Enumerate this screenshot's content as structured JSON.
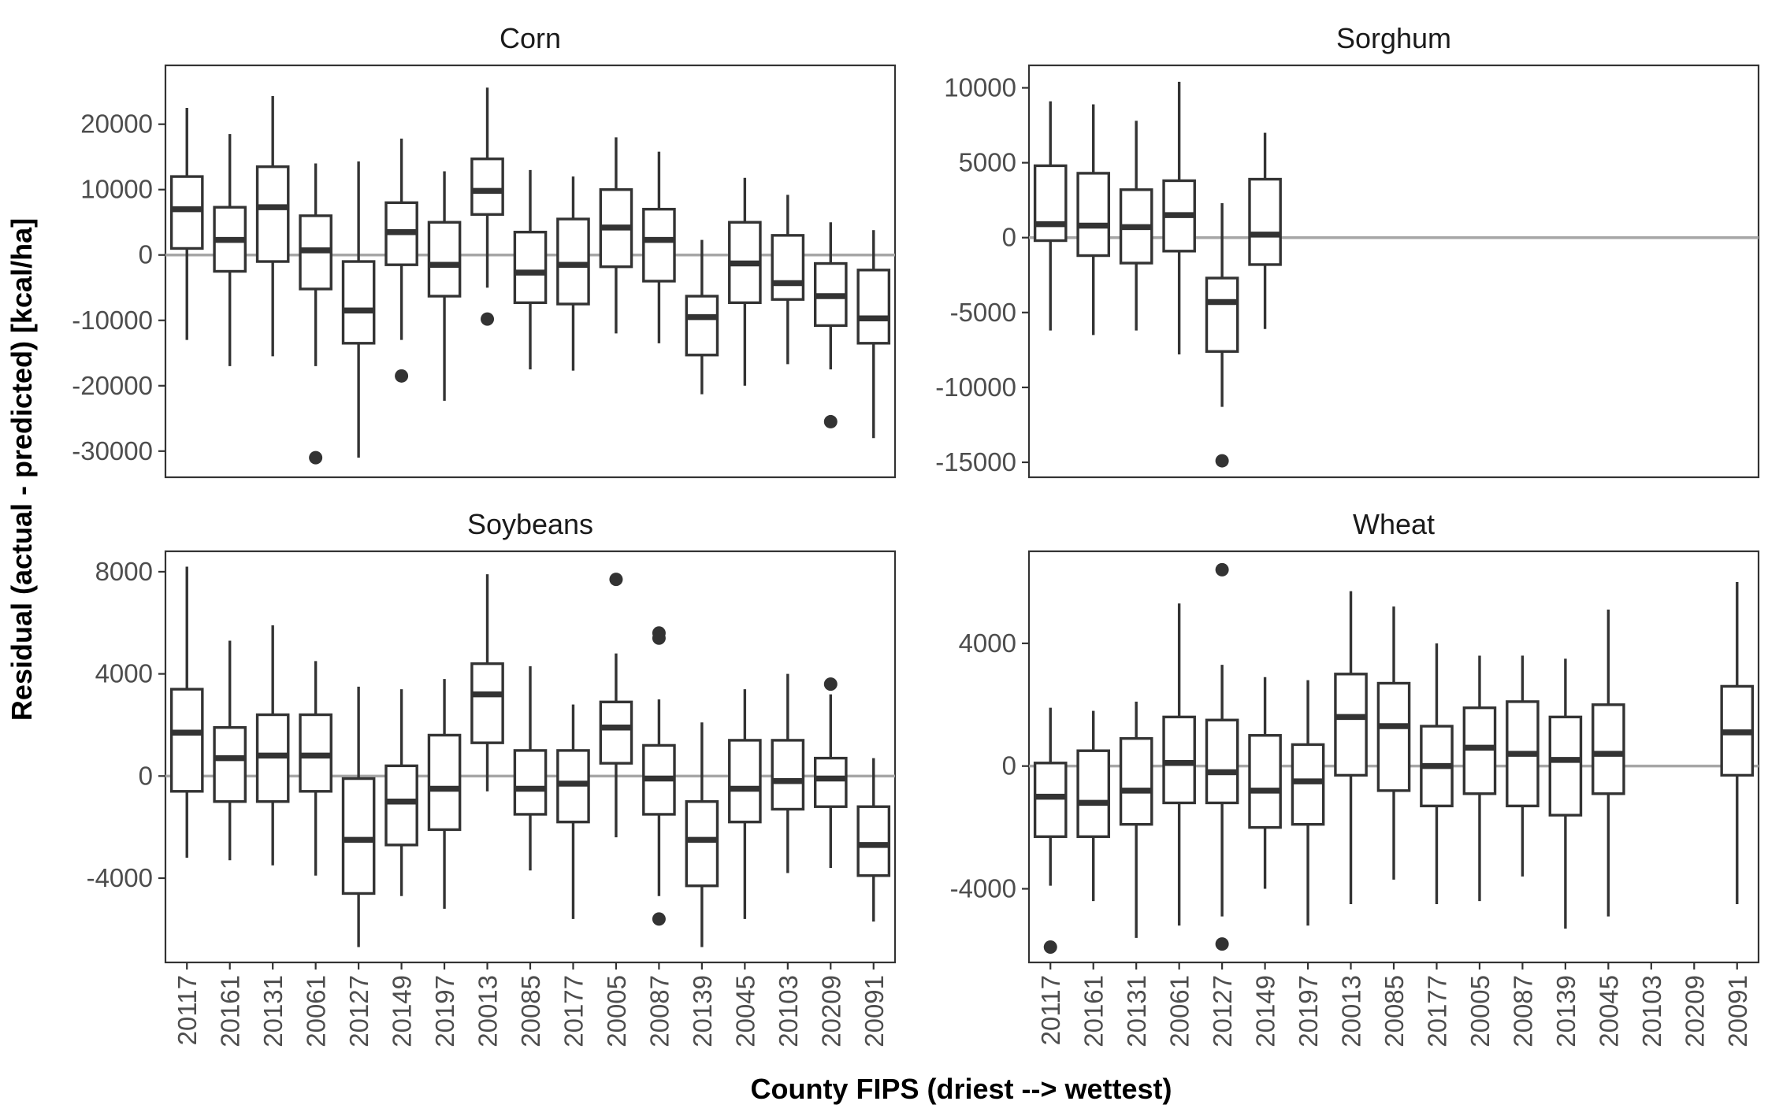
{
  "chart_data": {
    "type": "box",
    "xlabel": "County FIPS (driest --> wettest)",
    "ylabel": "Residual (actual - predicted) [kcal/ha]",
    "categories": [
      "20117",
      "20161",
      "20131",
      "20061",
      "20127",
      "20149",
      "20197",
      "20013",
      "20085",
      "20177",
      "20005",
      "20087",
      "20139",
      "20045",
      "20103",
      "20209",
      "20091"
    ],
    "panels": [
      {
        "title": "Corn",
        "ylim": [
          -34000,
          29000
        ],
        "yticks": [
          20000,
          10000,
          0,
          -10000,
          -20000,
          -30000
        ],
        "ytick_labels": [
          "20000",
          "10000",
          "0",
          "-10000",
          "-20000",
          "-30000"
        ],
        "boxes": [
          {
            "category": "20117",
            "min": -13000,
            "q1": 1000,
            "median": 7000,
            "q3": 12000,
            "max": 22500,
            "outliers": []
          },
          {
            "category": "20161",
            "min": -17000,
            "q1": -2500,
            "median": 2300,
            "q3": 7300,
            "max": 18500,
            "outliers": []
          },
          {
            "category": "20131",
            "min": -15500,
            "q1": -1000,
            "median": 7300,
            "q3": 13500,
            "max": 24300,
            "outliers": []
          },
          {
            "category": "20061",
            "min": -17000,
            "q1": -5200,
            "median": 700,
            "q3": 6000,
            "max": 14000,
            "outliers": [
              -31000
            ]
          },
          {
            "category": "20127",
            "min": -31000,
            "q1": -13500,
            "median": -8500,
            "q3": -1000,
            "max": 14300,
            "outliers": []
          },
          {
            "category": "20149",
            "min": -13000,
            "q1": -1500,
            "median": 3500,
            "q3": 8000,
            "max": 17800,
            "outliers": [
              -18500
            ]
          },
          {
            "category": "20197",
            "min": -22300,
            "q1": -6300,
            "median": -1500,
            "q3": 5000,
            "max": 12800,
            "outliers": []
          },
          {
            "category": "20013",
            "min": -5000,
            "q1": 6200,
            "median": 9800,
            "q3": 14700,
            "max": 25600,
            "outliers": [
              -9800
            ]
          },
          {
            "category": "20085",
            "min": -17500,
            "q1": -7300,
            "median": -2700,
            "q3": 3500,
            "max": 13000,
            "outliers": []
          },
          {
            "category": "20177",
            "min": -17700,
            "q1": -7500,
            "median": -1500,
            "q3": 5500,
            "max": 12000,
            "outliers": []
          },
          {
            "category": "20005",
            "min": -12000,
            "q1": -1800,
            "median": 4200,
            "q3": 10000,
            "max": 18000,
            "outliers": []
          },
          {
            "category": "20087",
            "min": -13500,
            "q1": -4000,
            "median": 2300,
            "q3": 7000,
            "max": 15800,
            "outliers": []
          },
          {
            "category": "20139",
            "min": -21300,
            "q1": -15300,
            "median": -9500,
            "q3": -6300,
            "max": 2300,
            "outliers": []
          },
          {
            "category": "20045",
            "min": -20000,
            "q1": -7300,
            "median": -1300,
            "q3": 5000,
            "max": 11800,
            "outliers": []
          },
          {
            "category": "20103",
            "min": -16700,
            "q1": -6800,
            "median": -4300,
            "q3": 3000,
            "max": 9200,
            "outliers": []
          },
          {
            "category": "20209",
            "min": -17500,
            "q1": -10800,
            "median": -6300,
            "q3": -1300,
            "max": 5000,
            "outliers": [
              -25500
            ]
          },
          {
            "category": "20091",
            "min": -28000,
            "q1": -13500,
            "median": -9700,
            "q3": -2300,
            "max": 3800,
            "outliers": []
          }
        ]
      },
      {
        "title": "Sorghum",
        "ylim": [
          -16000,
          11500
        ],
        "yticks": [
          10000,
          5000,
          0,
          -5000,
          -10000,
          -15000
        ],
        "ytick_labels": [
          "10000",
          "5000",
          "0",
          "-5000",
          "-10000",
          "-15000"
        ],
        "boxes": [
          {
            "category": "20117",
            "min": -6200,
            "q1": -200,
            "median": 900,
            "q3": 4800,
            "max": 9100,
            "outliers": []
          },
          {
            "category": "20161",
            "min": -6500,
            "q1": -1200,
            "median": 800,
            "q3": 4300,
            "max": 8900,
            "outliers": []
          },
          {
            "category": "20131",
            "min": -6200,
            "q1": -1700,
            "median": 700,
            "q3": 3200,
            "max": 7800,
            "outliers": []
          },
          {
            "category": "20061",
            "min": -7800,
            "q1": -900,
            "median": 1500,
            "q3": 3800,
            "max": 10400,
            "outliers": []
          },
          {
            "category": "20127",
            "min": -11300,
            "q1": -7600,
            "median": -4300,
            "q3": -2700,
            "max": 2300,
            "outliers": [
              -14900
            ]
          },
          {
            "category": "20149",
            "min": -6100,
            "q1": -1800,
            "median": 200,
            "q3": 3900,
            "max": 7000,
            "outliers": []
          }
        ]
      },
      {
        "title": "Soybeans",
        "ylim": [
          -7300,
          8800
        ],
        "yticks": [
          8000,
          4000,
          0,
          -4000
        ],
        "ytick_labels": [
          "8000",
          "4000",
          "0",
          "-4000"
        ],
        "boxes": [
          {
            "category": "20117",
            "min": -3200,
            "q1": -600,
            "median": 1700,
            "q3": 3400,
            "max": 8200,
            "outliers": []
          },
          {
            "category": "20161",
            "min": -3300,
            "q1": -1000,
            "median": 700,
            "q3": 1900,
            "max": 5300,
            "outliers": []
          },
          {
            "category": "20131",
            "min": -3500,
            "q1": -1000,
            "median": 800,
            "q3": 2400,
            "max": 5900,
            "outliers": []
          },
          {
            "category": "20061",
            "min": -3900,
            "q1": -600,
            "median": 800,
            "q3": 2400,
            "max": 4500,
            "outliers": []
          },
          {
            "category": "20127",
            "min": -6700,
            "q1": -4600,
            "median": -2500,
            "q3": -100,
            "max": 3500,
            "outliers": []
          },
          {
            "category": "20149",
            "min": -4700,
            "q1": -2700,
            "median": -1000,
            "q3": 400,
            "max": 3400,
            "outliers": []
          },
          {
            "category": "20197",
            "min": -5200,
            "q1": -2100,
            "median": -500,
            "q3": 1600,
            "max": 3800,
            "outliers": []
          },
          {
            "category": "20013",
            "min": -600,
            "q1": 1300,
            "median": 3200,
            "q3": 4400,
            "max": 7900,
            "outliers": []
          },
          {
            "category": "20085",
            "min": -3700,
            "q1": -1500,
            "median": -500,
            "q3": 1000,
            "max": 4300,
            "outliers": []
          },
          {
            "category": "20177",
            "min": -5600,
            "q1": -1800,
            "median": -300,
            "q3": 1000,
            "max": 2800,
            "outliers": []
          },
          {
            "category": "20005",
            "min": -2400,
            "q1": 500,
            "median": 1900,
            "q3": 2900,
            "max": 4800,
            "outliers": [
              7700
            ]
          },
          {
            "category": "20087",
            "min": -4700,
            "q1": -1500,
            "median": -100,
            "q3": 1200,
            "max": 3000,
            "outliers": [
              5600,
              5400,
              -5600
            ]
          },
          {
            "category": "20139",
            "min": -6700,
            "q1": -4300,
            "median": -2500,
            "q3": -1000,
            "max": 2100,
            "outliers": []
          },
          {
            "category": "20045",
            "min": -5600,
            "q1": -1800,
            "median": -500,
            "q3": 1400,
            "max": 3400,
            "outliers": []
          },
          {
            "category": "20103",
            "min": -3800,
            "q1": -1300,
            "median": -200,
            "q3": 1400,
            "max": 4000,
            "outliers": []
          },
          {
            "category": "20209",
            "min": -3600,
            "q1": -1200,
            "median": -100,
            "q3": 700,
            "max": 3200,
            "outliers": [
              3600
            ]
          },
          {
            "category": "20091",
            "min": -5700,
            "q1": -3900,
            "median": -2700,
            "q3": -1200,
            "max": 700,
            "outliers": []
          }
        ]
      },
      {
        "title": "Wheat",
        "ylim": [
          -6400,
          7000
        ],
        "yticks": [
          4000,
          0,
          -4000
        ],
        "ytick_labels": [
          "4000",
          "0",
          "-4000"
        ],
        "boxes": [
          {
            "category": "20117",
            "min": -3900,
            "q1": -2300,
            "median": -1000,
            "q3": 100,
            "max": 1900,
            "outliers": [
              -5900
            ]
          },
          {
            "category": "20161",
            "min": -4400,
            "q1": -2300,
            "median": -1200,
            "q3": 500,
            "max": 1800,
            "outliers": []
          },
          {
            "category": "20131",
            "min": -5600,
            "q1": -1900,
            "median": -800,
            "q3": 900,
            "max": 2100,
            "outliers": []
          },
          {
            "category": "20061",
            "min": -5200,
            "q1": -1200,
            "median": 100,
            "q3": 1600,
            "max": 5300,
            "outliers": []
          },
          {
            "category": "20127",
            "min": -4900,
            "q1": -1200,
            "median": -200,
            "q3": 1500,
            "max": 3300,
            "outliers": [
              6400,
              -5800
            ]
          },
          {
            "category": "20149",
            "min": -4000,
            "q1": -2000,
            "median": -800,
            "q3": 1000,
            "max": 2900,
            "outliers": []
          },
          {
            "category": "20197",
            "min": -5200,
            "q1": -1900,
            "median": -500,
            "q3": 700,
            "max": 2800,
            "outliers": []
          },
          {
            "category": "20013",
            "min": -4500,
            "q1": -300,
            "median": 1600,
            "q3": 3000,
            "max": 5700,
            "outliers": []
          },
          {
            "category": "20085",
            "min": -3700,
            "q1": -800,
            "median": 1300,
            "q3": 2700,
            "max": 5200,
            "outliers": []
          },
          {
            "category": "20177",
            "min": -4500,
            "q1": -1300,
            "median": 0,
            "q3": 1300,
            "max": 4000,
            "outliers": []
          },
          {
            "category": "20005",
            "min": -4400,
            "q1": -900,
            "median": 600,
            "q3": 1900,
            "max": 3600,
            "outliers": []
          },
          {
            "category": "20087",
            "min": -3600,
            "q1": -1300,
            "median": 400,
            "q3": 2100,
            "max": 3600,
            "outliers": []
          },
          {
            "category": "20139",
            "min": -5300,
            "q1": -1600,
            "median": 200,
            "q3": 1600,
            "max": 3500,
            "outliers": []
          },
          {
            "category": "20045",
            "min": -4900,
            "q1": -900,
            "median": 400,
            "q3": 2000,
            "max": 5100,
            "outliers": []
          },
          {
            "category": "20091",
            "min": -4500,
            "q1": -300,
            "median": 1100,
            "q3": 2600,
            "max": 6000,
            "outliers": []
          }
        ]
      }
    ]
  }
}
